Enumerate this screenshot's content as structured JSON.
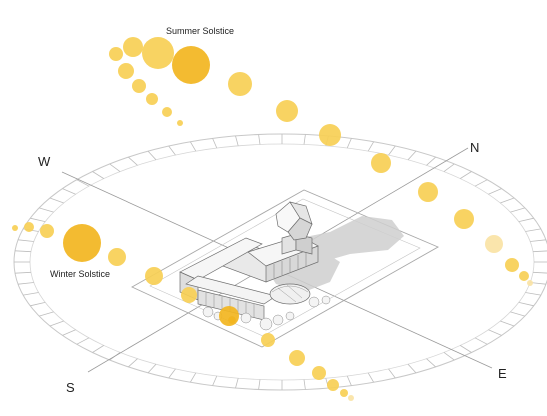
{
  "compass": {
    "north": "N",
    "south": "S",
    "east": "E",
    "west": "W"
  },
  "labels": {
    "summer_solstice": "Summer Solstice",
    "winter_solstice": "Winter Solstice"
  },
  "colors": {
    "sun_main": "#f2b51f",
    "sun_light": "#f7cf55",
    "sun_pale": "#fae3a5",
    "building": "#f1f1f1",
    "shadow": "#cfcfcf",
    "ring": "#c8c8c8"
  }
}
